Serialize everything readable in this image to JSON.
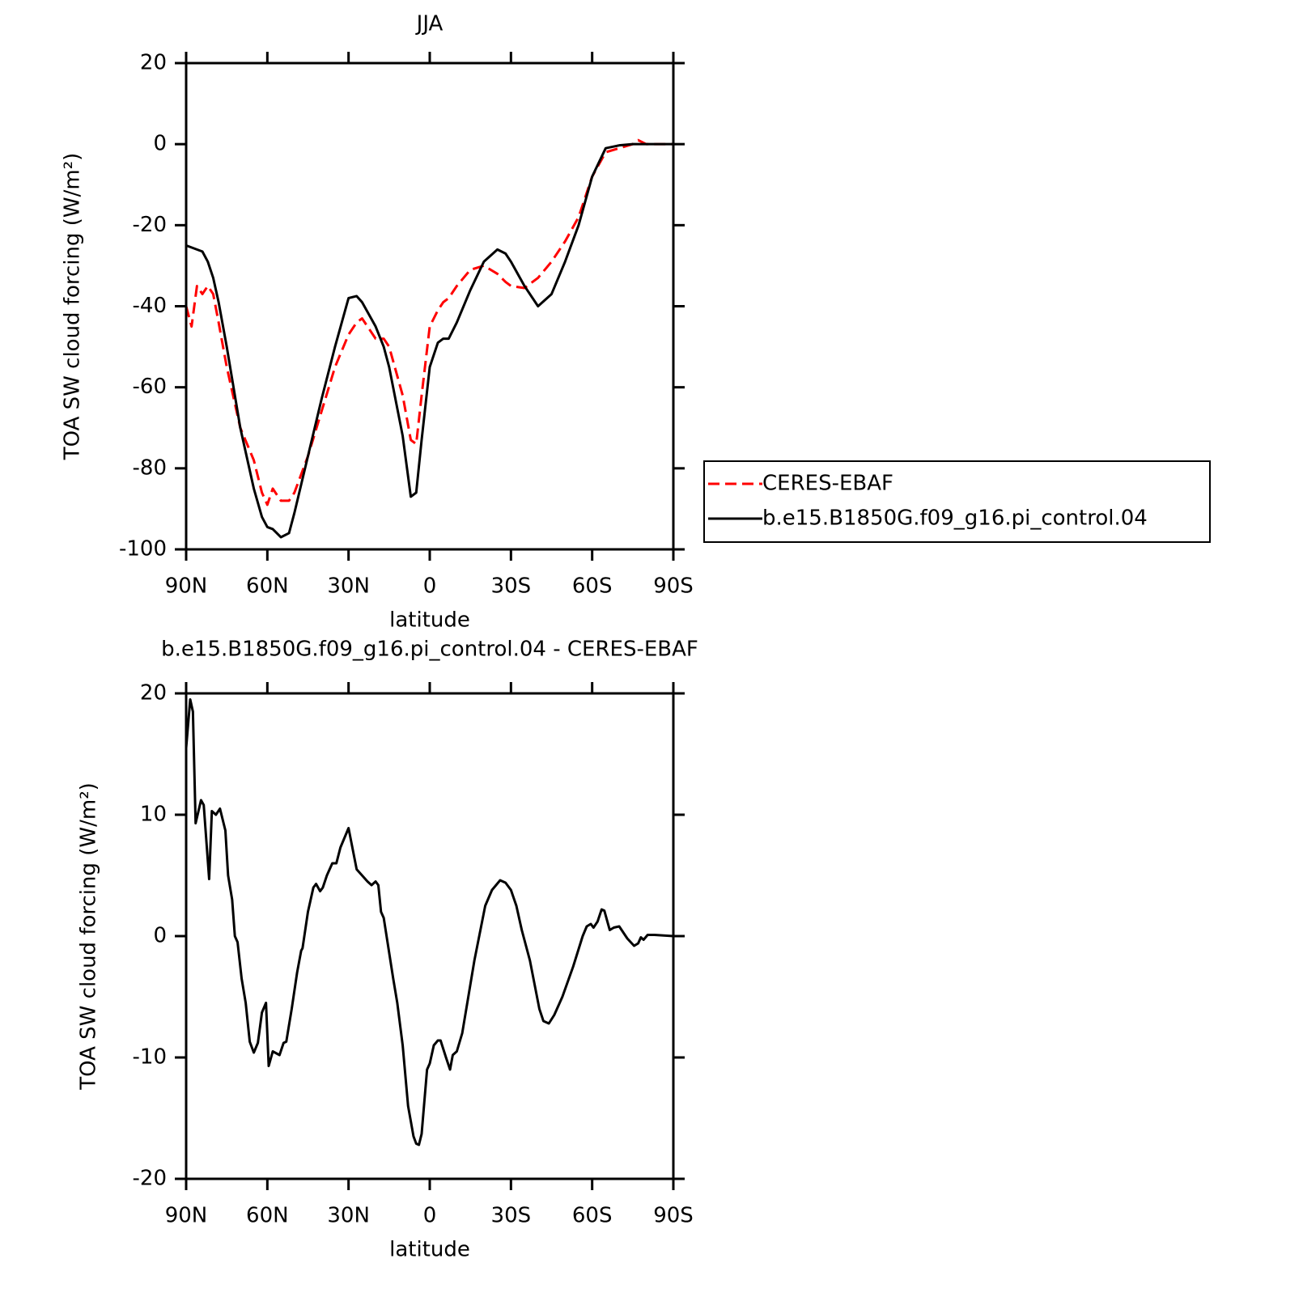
{
  "chart_data": [
    {
      "type": "line",
      "title": "JJA",
      "xlabel": "latitude",
      "ylabel": "TOA SW cloud forcing (W/m²)",
      "x": [
        90,
        88,
        86,
        84,
        82,
        80,
        78,
        75,
        70,
        65,
        62,
        60,
        58,
        55,
        52,
        50,
        45,
        40,
        35,
        30,
        27,
        25,
        20,
        17,
        15,
        10,
        7,
        5,
        3,
        0,
        -3,
        -5,
        -7,
        -10,
        -15,
        -20,
        -25,
        -28,
        -30,
        -35,
        -40,
        -45,
        -50,
        -55,
        -60,
        -65,
        -70,
        -75,
        -77,
        -80,
        -85,
        -90
      ],
      "series": [
        {
          "name": "CERES-EBAF",
          "color": "#ff0000",
          "dashed": true,
          "values": [
            -40,
            -45,
            -35,
            -37,
            -35,
            -37,
            -44,
            -55,
            -70,
            -78,
            -86,
            -89,
            -85,
            -88,
            -88,
            -86,
            -77,
            -66,
            -55,
            -47,
            -44,
            -43,
            -48,
            -48,
            -50,
            -62,
            -73,
            -74,
            -62,
            -45,
            -41,
            -39,
            -38,
            -35,
            -31,
            -30,
            -32,
            -34,
            -35,
            -35.5,
            -33,
            -29,
            -24,
            -18,
            -8,
            -2,
            -1,
            0,
            1,
            0,
            0,
            0
          ]
        },
        {
          "name": "b.e15.B1850G.f09_g16.pi_control.04",
          "color": "#000000",
          "dashed": false,
          "values": [
            -25,
            -25.5,
            -26,
            -26.5,
            -29,
            -33,
            -39,
            -50,
            -70,
            -85,
            -92,
            -94.5,
            -95,
            -97,
            -96,
            -91,
            -77,
            -63,
            -50,
            -38,
            -37.5,
            -39,
            -45,
            -50,
            -55,
            -72,
            -87,
            -86,
            -73,
            -55,
            -49,
            -48,
            -48,
            -44,
            -36,
            -29,
            -26,
            -27,
            -29,
            -35,
            -40,
            -37,
            -29,
            -20,
            -8,
            -1,
            -0.3,
            0,
            0,
            0,
            0,
            0
          ]
        }
      ],
      "xlim": [
        90,
        -90
      ],
      "xticks": [
        {
          "value": 90,
          "label": "90N"
        },
        {
          "value": 60,
          "label": "60N"
        },
        {
          "value": 30,
          "label": "30N"
        },
        0,
        {
          "value": -30,
          "label": "30S"
        },
        {
          "value": -60,
          "label": "60S"
        },
        {
          "value": -90,
          "label": "90S"
        }
      ],
      "ylim": [
        -100,
        20
      ],
      "yticks": [
        -100,
        -80,
        -60,
        -40,
        -20,
        0,
        20
      ],
      "grid": false,
      "legend": "right"
    },
    {
      "type": "line",
      "title": "b.e15.B1850G.f09_g16.pi_control.04 - CERES-EBAF",
      "xlabel": "latitude",
      "ylabel": "TOA SW cloud forcing (W/m²)",
      "x": [
        90,
        88.5,
        87.5,
        86.5,
        84.5,
        83.5,
        81.5,
        80.5,
        79,
        77.5,
        75.5,
        74.5,
        73,
        72,
        71,
        69.5,
        68,
        66.5,
        65,
        63.5,
        62,
        60.5,
        59.5,
        58,
        55.5,
        54,
        53,
        51,
        49,
        47.5,
        47,
        45,
        43,
        42,
        40.5,
        39.5,
        38,
        36,
        34.5,
        33,
        30,
        27,
        25,
        23,
        21.5,
        20,
        19,
        18,
        17,
        13.5,
        12,
        10,
        8,
        6,
        5,
        4,
        3,
        1,
        0,
        -1.5,
        -3,
        -4,
        -6,
        -7.5,
        -8.5,
        -10,
        -12,
        -13.5,
        -16.5,
        -20.5,
        -23,
        -26,
        -28,
        -30,
        -32,
        -34,
        -37,
        -40.5,
        -42,
        -44,
        -46,
        -49,
        -53,
        -56.5,
        -58,
        -59.5,
        -60.5,
        -62,
        -63.5,
        -64.5,
        -66.5,
        -68,
        -70,
        -73,
        -75.5,
        -77,
        -78,
        -79,
        -80.5,
        -83,
        -90
      ],
      "series": [
        {
          "name": null,
          "color": "#000000",
          "dashed": false,
          "values": [
            15.5,
            19.5,
            18.5,
            9.3,
            11.2,
            10.8,
            4.7,
            10.3,
            10,
            10.5,
            8.7,
            5,
            3,
            0,
            -0.5,
            -3.5,
            -5.5,
            -8.7,
            -9.6,
            -8.8,
            -6.3,
            -5.5,
            -10.7,
            -9.5,
            -9.8,
            -8.8,
            -8.7,
            -6,
            -3,
            -1.2,
            -1,
            2,
            4,
            4.3,
            3.7,
            4,
            5,
            6,
            6,
            7.3,
            8.9,
            5.5,
            5,
            4.5,
            4.2,
            4.5,
            4.2,
            2,
            1.5,
            -3.5,
            -5.5,
            -9,
            -14,
            -16.5,
            -17.1,
            -17.2,
            -16.3,
            -11,
            -10.5,
            -9,
            -8.6,
            -8.6,
            -10,
            -11,
            -9.8,
            -9.5,
            -8,
            -6,
            -2,
            2.5,
            3.8,
            4.6,
            4.4,
            3.8,
            2.5,
            0.5,
            -2,
            -6,
            -7,
            -7.2,
            -6.5,
            -5,
            -2.5,
            0,
            0.8,
            1,
            0.7,
            1.2,
            2.2,
            2.1,
            0.5,
            0.7,
            0.8,
            -0.2,
            -0.8,
            -0.6,
            -0.1,
            -0.3,
            0.1,
            0.1,
            0
          ]
        }
      ],
      "xlim": [
        90,
        -90
      ],
      "xticks": [
        {
          "value": 90,
          "label": "90N"
        },
        {
          "value": 60,
          "label": "60N"
        },
        {
          "value": 30,
          "label": "30N"
        },
        0,
        {
          "value": -30,
          "label": "30S"
        },
        {
          "value": -60,
          "label": "60S"
        },
        {
          "value": -90,
          "label": "90S"
        }
      ],
      "ylim": [
        -20,
        20
      ],
      "yticks": [
        -20,
        -10,
        0,
        10,
        20
      ],
      "grid": false
    }
  ]
}
